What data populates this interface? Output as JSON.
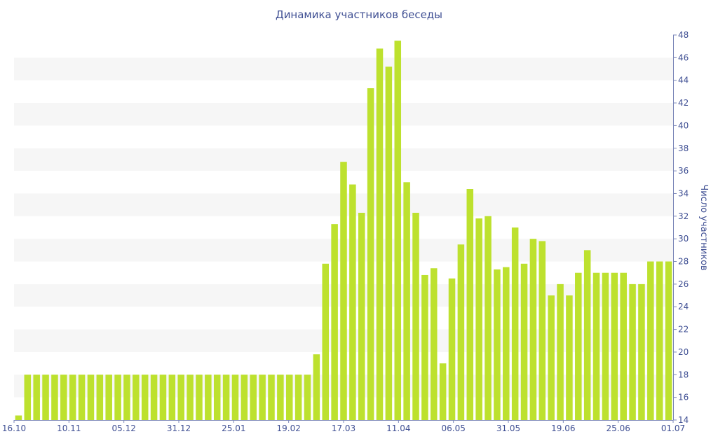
{
  "colors": {
    "bar": "#bde12e",
    "text": "#3f4f93",
    "axis": "#7a86b8",
    "band": "#f6f6f6"
  },
  "chart_data": {
    "type": "bar",
    "title": "Динамика участников беседы",
    "xlabel": "",
    "ylabel": "Число участников",
    "ylim": [
      14,
      48
    ],
    "y_ticks": [
      14,
      16,
      18,
      20,
      22,
      24,
      26,
      28,
      30,
      32,
      34,
      36,
      38,
      40,
      42,
      44,
      46,
      48
    ],
    "grid": "alternating horizontal bands",
    "y_axis_side": "right",
    "x_tick_labels": [
      "16.10",
      "10.11",
      "05.12",
      "31.12",
      "25.01",
      "19.02",
      "17.03",
      "11.04",
      "06.05",
      "31.05",
      "19.06",
      "25.06",
      "01.07"
    ],
    "values": [
      14.4,
      18,
      18,
      18,
      18,
      18,
      18,
      18,
      18,
      18,
      18,
      18,
      18,
      18,
      18,
      18,
      18,
      18,
      18,
      18,
      18,
      18,
      18,
      18,
      18,
      18,
      18,
      18,
      18,
      18,
      18,
      18,
      18,
      19.8,
      27.8,
      31.3,
      36.8,
      34.8,
      32.3,
      43.3,
      46.8,
      45.2,
      47.5,
      35,
      32.3,
      26.8,
      27.4,
      19,
      26.5,
      29.5,
      34.4,
      31.8,
      32,
      27.3,
      27.5,
      31,
      27.8,
      30,
      29.8,
      25,
      26,
      25,
      27,
      29,
      27,
      27,
      27,
      27,
      26,
      26,
      28,
      28,
      28
    ]
  }
}
